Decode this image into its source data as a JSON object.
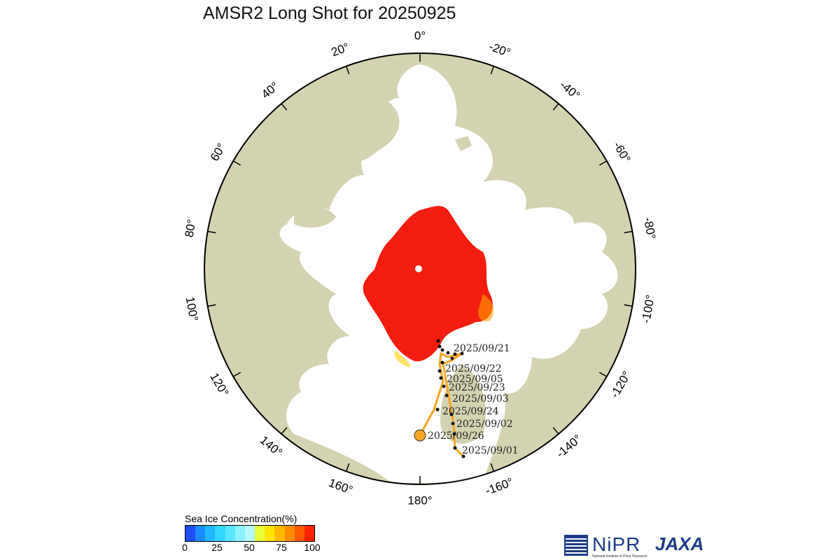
{
  "title": "AMSR2 Long Shot for 20250925",
  "longitude_labels": [
    {
      "text": "0°",
      "lon": 0
    },
    {
      "text": "-20°",
      "lon": -20
    },
    {
      "text": "-40°",
      "lon": -40
    },
    {
      "text": "-60°",
      "lon": -60
    },
    {
      "text": "-80°",
      "lon": -80
    },
    {
      "text": "-100°",
      "lon": -100
    },
    {
      "text": "-120°",
      "lon": -120
    },
    {
      "text": "-140°",
      "lon": -140
    },
    {
      "text": "-160°",
      "lon": -160
    },
    {
      "text": "180°",
      "lon": 180
    },
    {
      "text": "160°",
      "lon": 160
    },
    {
      "text": "140°",
      "lon": 140
    },
    {
      "text": "120°",
      "lon": 120
    },
    {
      "text": "100°",
      "lon": 100
    },
    {
      "text": "80°",
      "lon": 80
    },
    {
      "text": "60°",
      "lon": 60
    },
    {
      "text": "40°",
      "lon": 40
    },
    {
      "text": "20°",
      "lon": 20
    }
  ],
  "track_labels": [
    "2025/09/21",
    "2025/09/22",
    "2025/09/05",
    "2025/09/23",
    "2025/09/03",
    "2025/09/24",
    "2025/09/02",
    "2025/09/26",
    "2025/09/01"
  ],
  "legend": {
    "title": "Sea Ice Concentration(%)",
    "ticks": [
      "0",
      "25",
      "50",
      "75",
      "100"
    ],
    "colors": [
      "#1f4ef5",
      "#1a8cff",
      "#22b8ff",
      "#33d6ff",
      "#5ae6ff",
      "#8cf2ff",
      "#b8f8ff",
      "#e8ff3a",
      "#ffe400",
      "#ffb800",
      "#ff8c00",
      "#ff5a00",
      "#ff2200"
    ]
  },
  "logos": {
    "nipr": "NiPR",
    "nipr_sub": "National Institute of Polar Research",
    "jaxa": "JAXA"
  },
  "colors": {
    "land": "#d4d3b1",
    "ocean": "#ffffff",
    "ice": "#f21d10",
    "track": "#f5a623",
    "track_points": "#111111"
  }
}
